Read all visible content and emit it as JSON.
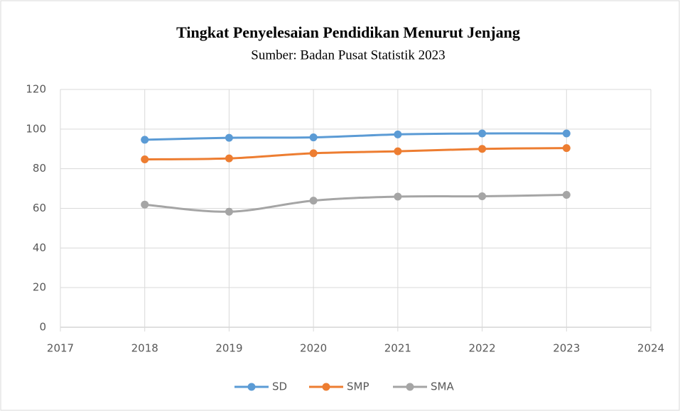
{
  "chart_data": {
    "type": "line",
    "title": "Tingkat Penyelesaian Pendidikan Menurut Jenjang",
    "subtitle": "Sumber: Badan Pusat Statistik 2023",
    "x": [
      2018,
      2019,
      2020,
      2021,
      2022,
      2023
    ],
    "xlim": [
      2017,
      2024
    ],
    "xticks": [
      2017,
      2018,
      2019,
      2020,
      2021,
      2022,
      2023,
      2024
    ],
    "ylim": [
      0,
      120
    ],
    "yticks": [
      0,
      20,
      40,
      60,
      80,
      100,
      120
    ],
    "grid": true,
    "smooth": true,
    "legend": "bottom",
    "series": [
      {
        "name": "SD",
        "color": "#5b9bd5",
        "values": [
          94.6,
          95.6,
          95.8,
          97.3,
          97.8,
          97.8
        ]
      },
      {
        "name": "SMP",
        "color": "#ed7d31",
        "values": [
          84.7,
          85.2,
          87.8,
          88.8,
          90.0,
          90.4
        ]
      },
      {
        "name": "SMA",
        "color": "#a5a5a5",
        "values": [
          61.9,
          58.3,
          63.9,
          65.9,
          66.1,
          66.8
        ]
      }
    ]
  }
}
